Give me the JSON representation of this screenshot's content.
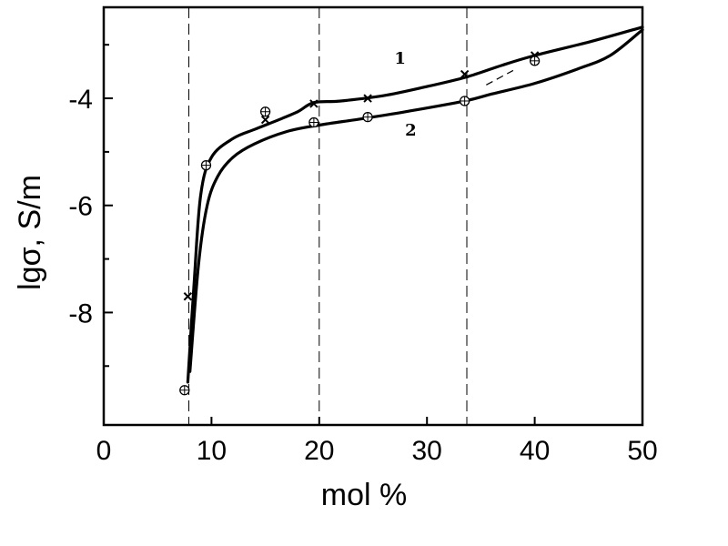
{
  "chart_data": {
    "type": "line",
    "title": "",
    "xlabel": "mol %",
    "ylabel": "lgσ, S/m",
    "xlim": [
      0,
      50
    ],
    "ylim": [
      -10.1,
      -2.3
    ],
    "x_ticks": [
      0,
      10,
      20,
      30,
      40,
      50
    ],
    "x_tick_labels": [
      "0",
      "10",
      "20",
      "30",
      "40",
      "50"
    ],
    "y_major_ticks": [
      -4,
      -6,
      -8
    ],
    "y_major_tick_labels": [
      "-4",
      "-6",
      "-8"
    ],
    "y_minor_ticks": [
      -3,
      -5,
      -7,
      -9
    ],
    "dashed_vlines": [
      7.9,
      20,
      33.7
    ],
    "grid": false,
    "series": [
      {
        "name": "1",
        "marker": "x",
        "points": [
          {
            "x": 7.8,
            "y": -7.7
          },
          {
            "x": 15,
            "y": -4.4
          },
          {
            "x": 19.5,
            "y": -4.1
          },
          {
            "x": 24.5,
            "y": -4.0
          },
          {
            "x": 33.5,
            "y": -3.55
          },
          {
            "x": 40,
            "y": -3.2
          }
        ],
        "curve": [
          {
            "x": 7.8,
            "y": -9.3
          },
          {
            "x": 8.4,
            "y": -7.4
          },
          {
            "x": 9.0,
            "y": -5.8
          },
          {
            "x": 10.0,
            "y": -5.1
          },
          {
            "x": 12.0,
            "y": -4.75
          },
          {
            "x": 14.0,
            "y": -4.58
          },
          {
            "x": 16.0,
            "y": -4.42
          },
          {
            "x": 18.0,
            "y": -4.25
          },
          {
            "x": 19.5,
            "y": -4.08
          },
          {
            "x": 22.0,
            "y": -4.05
          },
          {
            "x": 26.0,
            "y": -3.95
          },
          {
            "x": 30.0,
            "y": -3.78
          },
          {
            "x": 33.7,
            "y": -3.6
          },
          {
            "x": 37.0,
            "y": -3.38
          },
          {
            "x": 40.0,
            "y": -3.2
          },
          {
            "x": 45.0,
            "y": -2.95
          },
          {
            "x": 50.0,
            "y": -2.67
          }
        ]
      },
      {
        "name": "2",
        "marker": "circle-plus",
        "points": [
          {
            "x": 7.5,
            "y": -9.45
          },
          {
            "x": 9.5,
            "y": -5.25
          },
          {
            "x": 15,
            "y": -4.25
          },
          {
            "x": 19.5,
            "y": -4.45
          },
          {
            "x": 24.5,
            "y": -4.35
          },
          {
            "x": 33.5,
            "y": -4.05
          },
          {
            "x": 40,
            "y": -3.3
          }
        ],
        "curve": [
          {
            "x": 8.0,
            "y": -9.1
          },
          {
            "x": 8.8,
            "y": -7.1
          },
          {
            "x": 9.6,
            "y": -6.0
          },
          {
            "x": 10.6,
            "y": -5.45
          },
          {
            "x": 12.0,
            "y": -5.1
          },
          {
            "x": 14.0,
            "y": -4.85
          },
          {
            "x": 17.0,
            "y": -4.62
          },
          {
            "x": 20.0,
            "y": -4.5
          },
          {
            "x": 24.0,
            "y": -4.38
          },
          {
            "x": 28.0,
            "y": -4.25
          },
          {
            "x": 33.5,
            "y": -4.05
          },
          {
            "x": 36.0,
            "y": -3.92
          },
          {
            "x": 40.0,
            "y": -3.72
          },
          {
            "x": 44.0,
            "y": -3.45
          },
          {
            "x": 47.0,
            "y": -3.2
          },
          {
            "x": 50.0,
            "y": -2.72
          }
        ],
        "extra_dash": [
          {
            "x": 35.5,
            "y": -3.75
          },
          {
            "x": 38.0,
            "y": -3.48
          }
        ]
      }
    ],
    "annotations": [
      {
        "text": "1",
        "x": 27.5,
        "y": -3.35
      },
      {
        "text": "2",
        "x": 28.5,
        "y": -4.7
      }
    ]
  }
}
